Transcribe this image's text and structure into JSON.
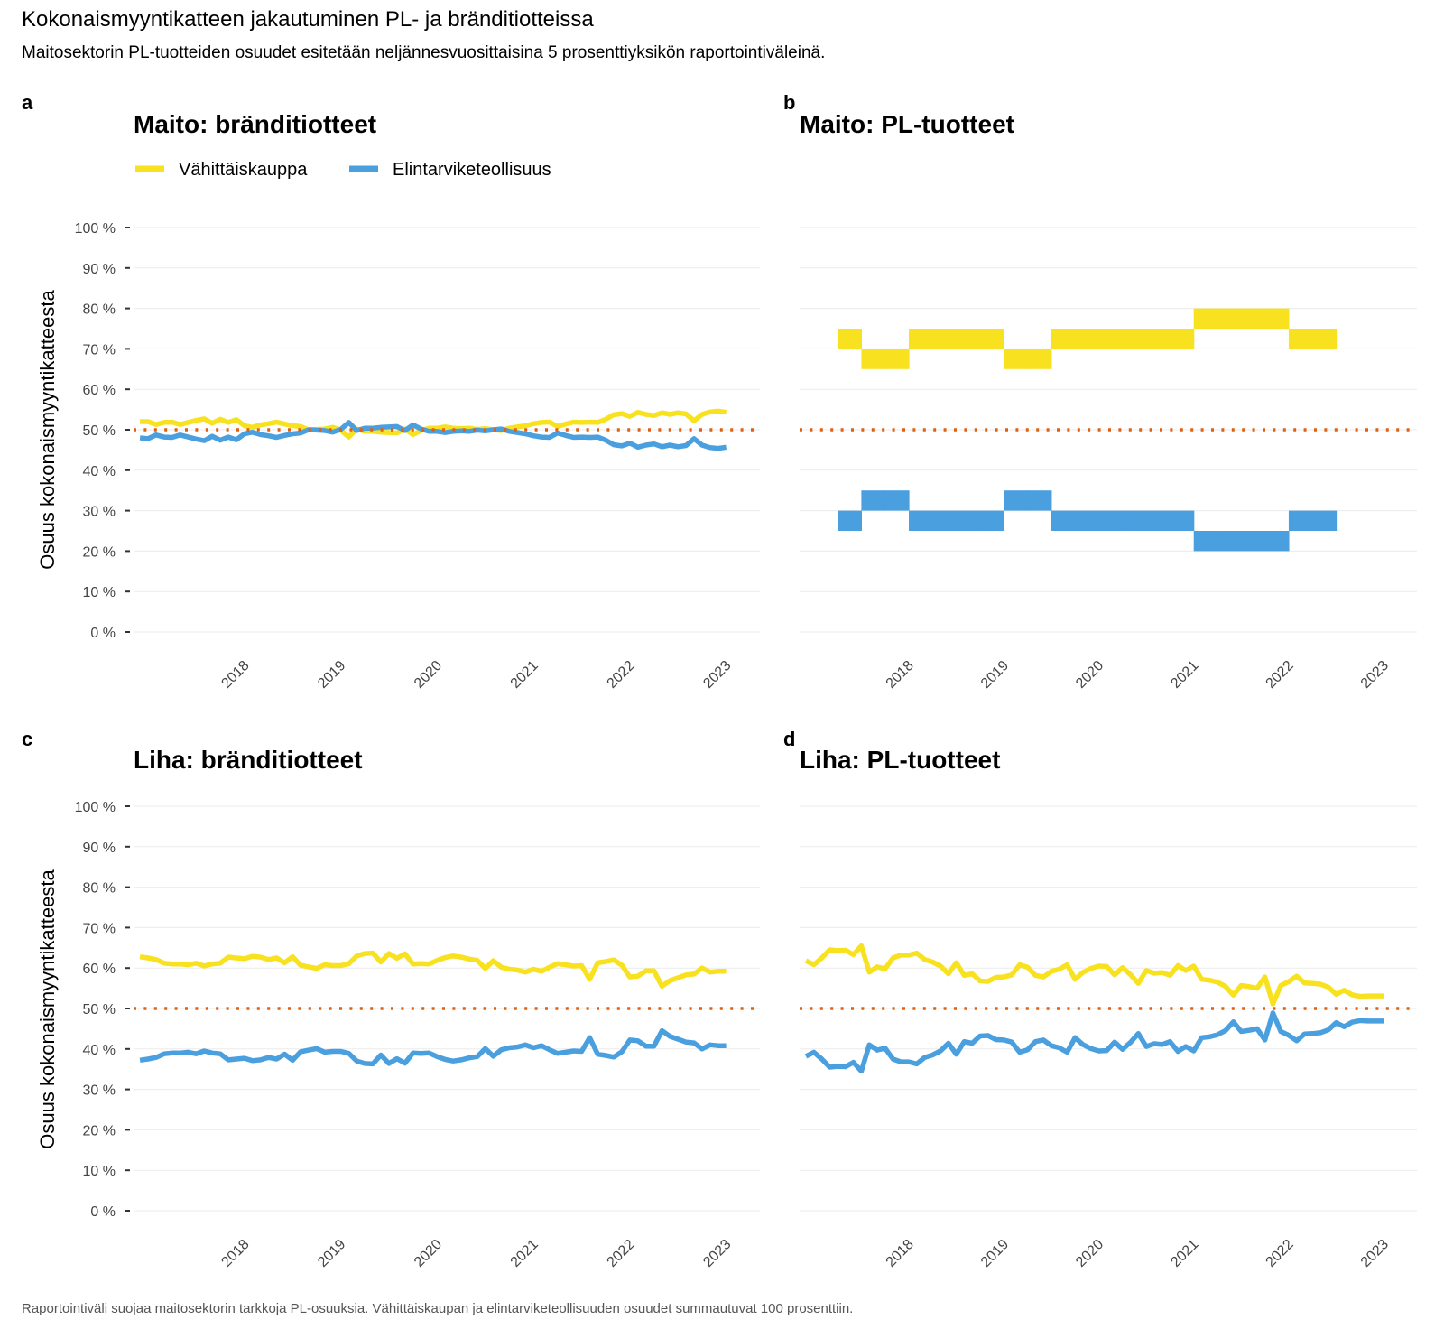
{
  "title": "Kokonaismyyntikatteen jakautuminen PL- ja bränditiotteissa",
  "subtitle": "Maitosektorin PL-tuotteiden osuudet esitetään neljännesvuosittaisina 5 prosenttiyksikön raportointiväleinä.",
  "caption": "Raportointiväli suojaa maitosektorin tarkkoja PL-osuuksia. Vähittäiskaupan ja elintarviketeollisuuden osuudet summautuvat 100 prosenttiin.",
  "legend": {
    "retail_label": "Vähittäiskauppa",
    "industry_label": "Elintarviketeollisuus"
  },
  "colors": {
    "retail": "#f8e21f",
    "industry": "#4a9fdf",
    "reference": "#e06010"
  },
  "chart_data": [
    {
      "tag": "a",
      "title": "Maito: bränditiotteet",
      "type": "line",
      "ylabel": "Osuus kokonaismyyntikatteesta",
      "xlabel": "",
      "ylim": [
        0,
        100
      ],
      "yticks": [
        "0 %",
        "10 %",
        "20 %",
        "30 %",
        "40 %",
        "50 %",
        "60 %",
        "70 %",
        "80 %",
        "90 %",
        "100 %"
      ],
      "xticks": [
        "2018",
        "2019",
        "2020",
        "2021",
        "2022",
        "2023"
      ],
      "reference_line": 50,
      "x_start": "2017-06",
      "x_step": "month",
      "series": [
        {
          "name": "Vähittäiskauppa",
          "values": [
            52,
            52,
            51.3,
            51.8,
            51.9,
            51.3,
            51.8,
            52.3,
            52.7,
            51.6,
            52.6,
            51.8,
            52.5,
            51,
            50.6,
            51.2,
            51.5,
            51.9,
            51.4,
            51,
            50.8,
            50,
            50.1,
            50.2,
            50.6,
            49.9,
            48.2,
            50.2,
            49.6,
            49.6,
            49.4,
            49.3,
            49.2,
            50.2,
            48.8,
            49.8,
            50.4,
            50.4,
            50.7,
            50.4,
            50.3,
            50.4,
            50.1,
            50.3,
            50,
            49.8,
            50.4,
            50.7,
            51,
            51.5,
            51.8,
            51.9,
            50.8,
            51.4,
            51.9,
            51.8,
            51.9,
            51.8,
            52.6,
            53.7,
            54,
            53.3,
            54.3,
            53.8,
            53.5,
            54.2,
            53.8,
            54.2,
            53.9,
            52.2,
            53.8,
            54.4,
            54.6,
            54.3
          ]
        },
        {
          "name": "Elintarviketeollisuus",
          "values": [
            48,
            47.8,
            48.7,
            48.2,
            48.1,
            48.7,
            48.2,
            47.7,
            47.3,
            48.4,
            47.4,
            48.2,
            47.5,
            49,
            49.4,
            48.8,
            48.5,
            48.1,
            48.6,
            49,
            49.2,
            50,
            49.9,
            49.8,
            49.4,
            50.1,
            51.8,
            49.8,
            50.4,
            50.4,
            50.6,
            50.7,
            50.8,
            49.8,
            51.2,
            50.2,
            49.6,
            49.6,
            49.3,
            49.6,
            49.7,
            49.6,
            49.9,
            49.7,
            50,
            50.2,
            49.6,
            49.3,
            49,
            48.5,
            48.2,
            48.1,
            49.2,
            48.6,
            48.1,
            48.2,
            48.1,
            48.2,
            47.4,
            46.3,
            46,
            46.7,
            45.7,
            46.2,
            46.5,
            45.8,
            46.2,
            45.8,
            46.1,
            47.8,
            46.2,
            45.6,
            45.4,
            45.7
          ]
        }
      ]
    },
    {
      "tag": "b",
      "title": "Maito: PL-tuotteet",
      "type": "area",
      "ylabel": "",
      "xlabel": "",
      "ylim": [
        0,
        100
      ],
      "xticks": [
        "2018",
        "2019",
        "2020",
        "2021",
        "2022",
        "2023"
      ],
      "reference_line": 50,
      "x_start": "2017-10",
      "x_step": "quarter",
      "series": [
        {
          "name": "Vähittäiskauppa",
          "bands": [
            [
              70,
              75
            ],
            [
              65,
              70
            ],
            [
              65,
              70
            ],
            [
              70,
              75
            ],
            [
              70,
              75
            ],
            [
              70,
              75
            ],
            [
              70,
              75
            ],
            [
              65,
              70
            ],
            [
              65,
              70
            ],
            [
              70,
              75
            ],
            [
              70,
              75
            ],
            [
              70,
              75
            ],
            [
              70,
              75
            ],
            [
              70,
              75
            ],
            [
              70,
              75
            ],
            [
              75,
              80
            ],
            [
              75,
              80
            ],
            [
              75,
              80
            ],
            [
              75,
              80
            ],
            [
              70,
              75
            ],
            [
              70,
              75
            ]
          ]
        },
        {
          "name": "Elintarviketeollisuus",
          "bands": [
            [
              25,
              30
            ],
            [
              30,
              35
            ],
            [
              30,
              35
            ],
            [
              25,
              30
            ],
            [
              25,
              30
            ],
            [
              25,
              30
            ],
            [
              25,
              30
            ],
            [
              30,
              35
            ],
            [
              30,
              35
            ],
            [
              25,
              30
            ],
            [
              25,
              30
            ],
            [
              25,
              30
            ],
            [
              25,
              30
            ],
            [
              25,
              30
            ],
            [
              25,
              30
            ],
            [
              20,
              25
            ],
            [
              20,
              25
            ],
            [
              20,
              25
            ],
            [
              20,
              25
            ],
            [
              25,
              30
            ],
            [
              25,
              30
            ]
          ]
        }
      ]
    },
    {
      "tag": "c",
      "title": "Liha: bränditiotteet",
      "type": "line",
      "ylabel": "Osuus kokonaismyyntikatteesta",
      "xlabel": "",
      "ylim": [
        0,
        100
      ],
      "yticks": [
        "0 %",
        "10 %",
        "20 %",
        "30 %",
        "40 %",
        "50 %",
        "60 %",
        "70 %",
        "80 %",
        "90 %",
        "100 %"
      ],
      "xticks": [
        "2018",
        "2019",
        "2020",
        "2021",
        "2022",
        "2023"
      ],
      "reference_line": 50,
      "x_start": "2017-06",
      "x_step": "month",
      "series": [
        {
          "name": "Vähittäiskauppa",
          "values": [
            62.8,
            62.5,
            62.1,
            61.2,
            61,
            61,
            60.8,
            61.2,
            60.5,
            61,
            61.2,
            62.7,
            62.5,
            62.3,
            62.9,
            62.7,
            62.1,
            62.5,
            61.3,
            62.8,
            60.7,
            60.3,
            59.9,
            60.8,
            60.6,
            60.6,
            61.1,
            63,
            63.6,
            63.7,
            61.5,
            63.6,
            62.4,
            63.5,
            61,
            61.1,
            61,
            61.9,
            62.6,
            63,
            62.7,
            62.2,
            61.9,
            59.9,
            61.8,
            60.2,
            59.7,
            59.5,
            59,
            59.7,
            59.2,
            60.2,
            61.1,
            60.8,
            60.5,
            60.6,
            57.2,
            61.3,
            61.6,
            62,
            60.7,
            57.8,
            58,
            59.3,
            59.3,
            55.5,
            56.9,
            57.6,
            58.3,
            58.5,
            60,
            59,
            59.2,
            59.2
          ]
        },
        {
          "name": "Elintarviketeollisuus",
          "values": [
            37.2,
            37.5,
            37.9,
            38.8,
            39,
            39,
            39.2,
            38.8,
            39.5,
            39,
            38.8,
            37.3,
            37.5,
            37.7,
            37.1,
            37.3,
            37.9,
            37.5,
            38.7,
            37.2,
            39.3,
            39.7,
            40.1,
            39.2,
            39.4,
            39.4,
            38.9,
            37,
            36.4,
            36.3,
            38.5,
            36.4,
            37.6,
            36.5,
            39,
            38.9,
            39,
            38.1,
            37.4,
            37,
            37.3,
            37.8,
            38.1,
            40.1,
            38.2,
            39.8,
            40.3,
            40.5,
            41,
            40.3,
            40.8,
            39.8,
            38.9,
            39.2,
            39.5,
            39.4,
            42.8,
            38.7,
            38.4,
            38,
            39.3,
            42.2,
            42,
            40.7,
            40.7,
            44.5,
            43.1,
            42.4,
            41.7,
            41.5,
            40,
            41,
            40.8,
            40.8
          ]
        }
      ]
    },
    {
      "tag": "d",
      "title": "Liha: PL-tuotteet",
      "type": "line",
      "ylabel": "",
      "xlabel": "",
      "ylim": [
        0,
        100
      ],
      "xticks": [
        "2018",
        "2019",
        "2020",
        "2021",
        "2022",
        "2023"
      ],
      "reference_line": 50,
      "x_start": "2017-06",
      "x_step": "month",
      "series": [
        {
          "name": "Vähittäiskauppa",
          "values": [
            61.8,
            60.8,
            62.5,
            64.5,
            64.3,
            64.4,
            63.3,
            65.5,
            59,
            60.3,
            59.8,
            62.5,
            63.2,
            63.2,
            63.7,
            62.1,
            61.5,
            60.5,
            58.6,
            61.3,
            58.2,
            58.6,
            56.8,
            56.7,
            57.7,
            57.8,
            58.3,
            60.8,
            60.2,
            58.2,
            57.8,
            59.2,
            59.7,
            60.8,
            57.2,
            58.9,
            59.9,
            60.5,
            60.4,
            58.3,
            60.1,
            58.4,
            56.2,
            59.4,
            58.7,
            58.9,
            58.2,
            60.6,
            59.4,
            60.5,
            57.2,
            57,
            56.5,
            55.5,
            53.3,
            55.7,
            55.4,
            55,
            57.8,
            51.1,
            55.7,
            56.6,
            58,
            56.3,
            56.2,
            56,
            55.3,
            53.5,
            54.5,
            53.4,
            53,
            53.1,
            53.1,
            53.1
          ]
        },
        {
          "name": "Elintarviketeollisuus",
          "values": [
            38.2,
            39.2,
            37.5,
            35.5,
            35.7,
            35.6,
            36.7,
            34.5,
            41,
            39.7,
            40.2,
            37.5,
            36.8,
            36.8,
            36.3,
            37.9,
            38.5,
            39.5,
            41.4,
            38.7,
            41.8,
            41.4,
            43.2,
            43.3,
            42.3,
            42.2,
            41.7,
            39.2,
            39.8,
            41.8,
            42.2,
            40.8,
            40.3,
            39.2,
            42.8,
            41.1,
            40.1,
            39.5,
            39.6,
            41.7,
            39.9,
            41.6,
            43.8,
            40.6,
            41.3,
            41.1,
            41.8,
            39.4,
            40.6,
            39.5,
            42.8,
            43,
            43.5,
            44.5,
            46.7,
            44.3,
            44.6,
            45,
            42.2,
            48.9,
            44.3,
            43.4,
            42,
            43.7,
            43.8,
            44,
            44.7,
            46.5,
            45.5,
            46.6,
            47,
            46.9,
            46.9,
            46.9
          ]
        }
      ]
    }
  ]
}
